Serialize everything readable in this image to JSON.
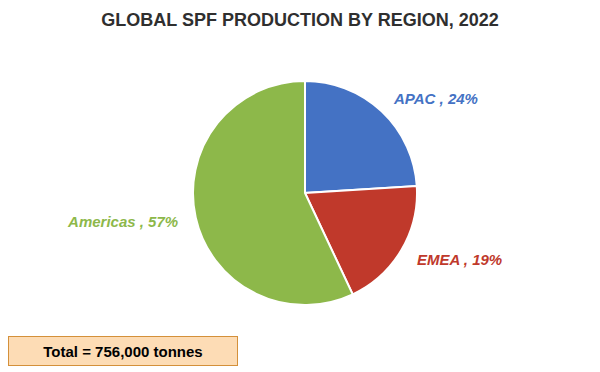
{
  "chart_data": {
    "type": "pie",
    "title": "GLOBAL SPF PRODUCTION BY REGION, 2022",
    "categories": [
      "APAC",
      "EMEA",
      "Americas"
    ],
    "values": [
      24,
      19,
      57
    ],
    "value_labels": [
      "APAC , 24%",
      "EMEA , 19%",
      "Americas , 57%"
    ],
    "colors": [
      "#4472C4",
      "#C0392B",
      "#8DB84A"
    ],
    "data_labels": true,
    "annotations": [
      "Total = 756,000 tonnes"
    ]
  }
}
